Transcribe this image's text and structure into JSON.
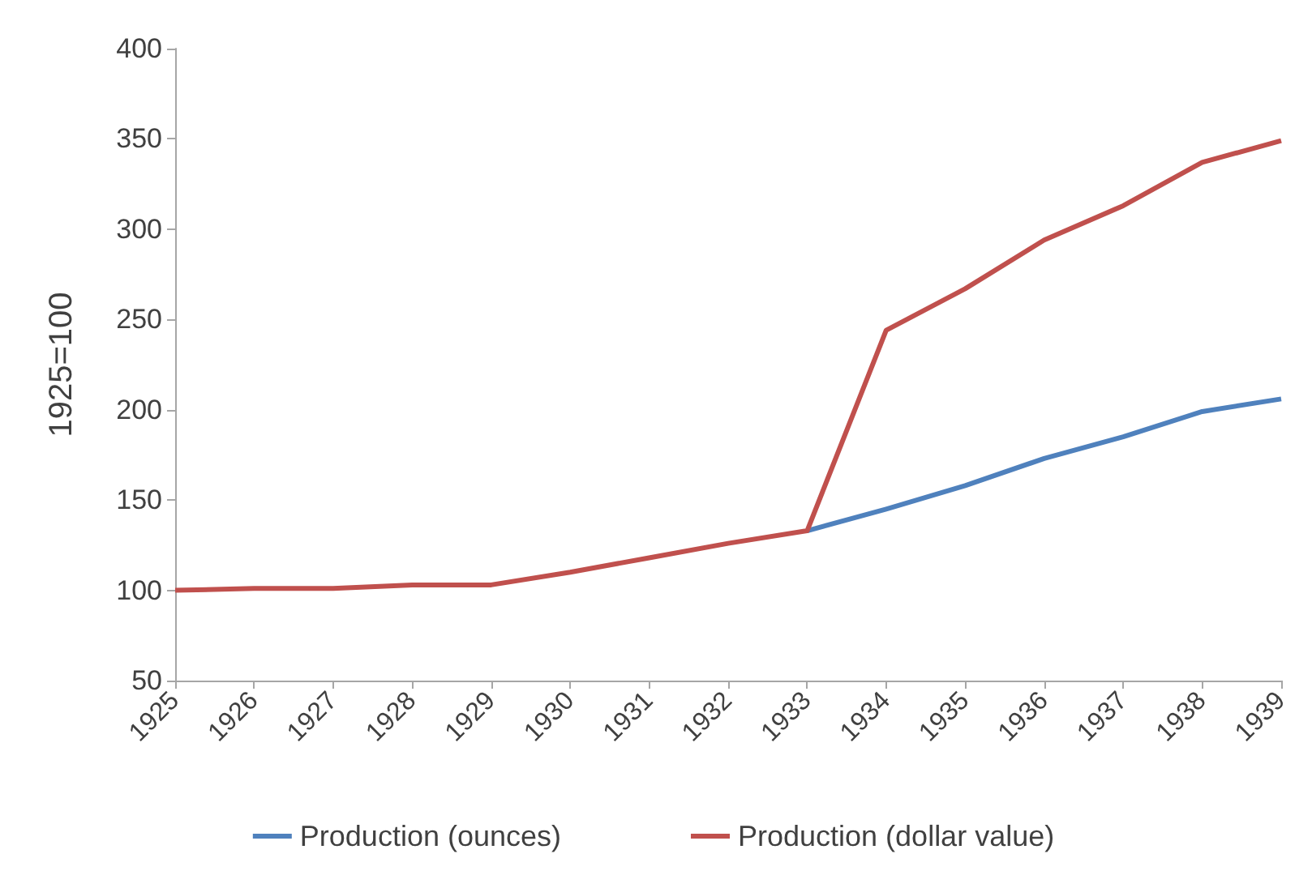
{
  "chart_data": {
    "type": "line",
    "ylabel": "1925=100",
    "categories": [
      "1925",
      "1926",
      "1927",
      "1928",
      "1929",
      "1930",
      "1931",
      "1932",
      "1933",
      "1934",
      "1935",
      "1936",
      "1937",
      "1938",
      "1939"
    ],
    "series": [
      {
        "name": "Production (ounces)",
        "color": "#4f81bd",
        "values": [
          null,
          null,
          null,
          null,
          null,
          null,
          null,
          null,
          133,
          145,
          158,
          173,
          185,
          199,
          206
        ]
      },
      {
        "name": "Production (dollar value)",
        "color": "#c0504d",
        "values": [
          100,
          101,
          101,
          103,
          103,
          110,
          118,
          126,
          133,
          244,
          267,
          294,
          313,
          337,
          349
        ]
      }
    ],
    "ylim": [
      50,
      400
    ],
    "yticks": [
      50,
      100,
      150,
      200,
      250,
      300,
      350,
      400
    ],
    "grid": false,
    "legend": "bottom",
    "marker": "none",
    "line_style": "solid"
  }
}
